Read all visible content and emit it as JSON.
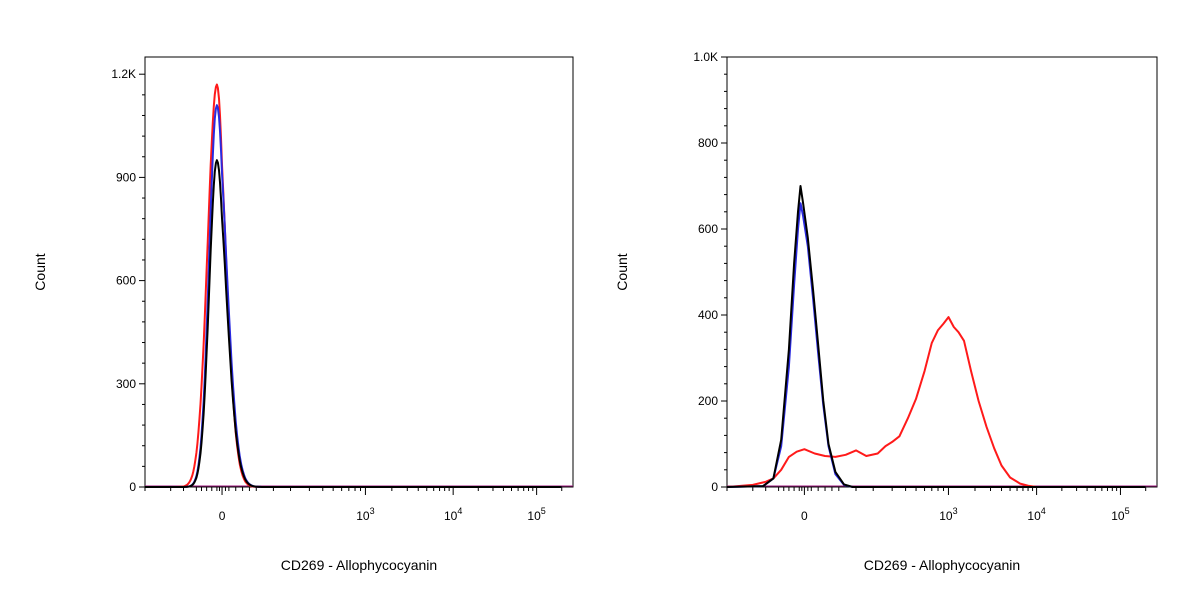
{
  "colors": {
    "red": "#ff1a1a",
    "blue": "#2a2ae0",
    "black": "#000000",
    "purple": "#a01a80"
  },
  "chart_data": [
    {
      "type": "line",
      "subtype": "flow-cytometry-histogram",
      "xlabel": "CD269 - Allophycocyanin",
      "ylabel": "Count",
      "x_scale": "biexponential",
      "xlim": [
        -300,
        200000
      ],
      "ylim": [
        0,
        1250
      ],
      "y_ticks": [
        0,
        300,
        600,
        900,
        1200
      ],
      "y_tick_labels": [
        "0",
        "300",
        "600",
        "900",
        "1.2K"
      ],
      "x_ticks": [
        0,
        1000,
        10000,
        100000
      ],
      "x_tick_labels": [
        {
          "base": "0",
          "exp": ""
        },
        {
          "base": "10",
          "exp": "3"
        },
        {
          "base": "10",
          "exp": "4"
        },
        {
          "base": "10",
          "exp": "5"
        }
      ],
      "grid": false,
      "series": [
        {
          "color": "red",
          "peak_x": -20,
          "peak_count": 1170,
          "width_left": 36,
          "width_right": 30
        },
        {
          "color": "blue",
          "peak_x": -20,
          "peak_count": 1110,
          "width_left": 30,
          "width_right": 32
        },
        {
          "color": "black",
          "peak_x": -20,
          "peak_count": 950,
          "width_left": 30,
          "width_right": 32
        }
      ]
    },
    {
      "type": "line",
      "subtype": "flow-cytometry-histogram",
      "xlabel": "CD269 - Allophycocyanin",
      "ylabel": "Count",
      "x_scale": "biexponential",
      "xlim": [
        -300,
        200000
      ],
      "ylim": [
        0,
        1000
      ],
      "y_ticks": [
        0,
        200,
        400,
        600,
        800,
        1000
      ],
      "y_tick_labels": [
        "0",
        "200",
        "400",
        "600",
        "800",
        "1.0K"
      ],
      "x_ticks": [
        0,
        1000,
        10000,
        100000
      ],
      "x_tick_labels": [
        {
          "base": "0",
          "exp": ""
        },
        {
          "base": "10",
          "exp": "3"
        },
        {
          "base": "10",
          "exp": "4"
        },
        {
          "base": "10",
          "exp": "5"
        }
      ],
      "grid": false,
      "series": [
        {
          "color": "red",
          "points": [
            [
              -300,
              0
            ],
            [
              -200,
              5
            ],
            [
              -150,
              12
            ],
            [
              -120,
              20
            ],
            [
              -90,
              40
            ],
            [
              -60,
              70
            ],
            [
              -30,
              82
            ],
            [
              0,
              88
            ],
            [
              30,
              78
            ],
            [
              60,
              72
            ],
            [
              90,
              70
            ],
            [
              120,
              75
            ],
            [
              150,
              85
            ],
            [
              180,
              72
            ],
            [
              220,
              78
            ],
            [
              260,
              95
            ],
            [
              300,
              105
            ],
            [
              350,
              118
            ],
            [
              420,
              160
            ],
            [
              500,
              205
            ],
            [
              600,
              270
            ],
            [
              700,
              335
            ],
            [
              800,
              365
            ],
            [
              900,
              380
            ],
            [
              1000,
              395
            ],
            [
              1150,
              372
            ],
            [
              1300,
              360
            ],
            [
              1500,
              340
            ],
            [
              1800,
              270
            ],
            [
              2200,
              200
            ],
            [
              2700,
              140
            ],
            [
              3300,
              90
            ],
            [
              4000,
              50
            ],
            [
              5000,
              22
            ],
            [
              6500,
              8
            ],
            [
              8000,
              3
            ],
            [
              10000,
              0
            ],
            [
              200000,
              0
            ]
          ]
        },
        {
          "color": "blue",
          "points": [
            [
              -300,
              0
            ],
            [
              -160,
              2
            ],
            [
              -120,
              20
            ],
            [
              -90,
              95
            ],
            [
              -60,
              280
            ],
            [
              -40,
              470
            ],
            [
              -25,
              600
            ],
            [
              -15,
              660
            ],
            [
              -5,
              630
            ],
            [
              10,
              560
            ],
            [
              25,
              440
            ],
            [
              40,
              310
            ],
            [
              55,
              190
            ],
            [
              70,
              95
            ],
            [
              90,
              30
            ],
            [
              115,
              5
            ],
            [
              140,
              0
            ],
            [
              200000,
              0
            ]
          ]
        },
        {
          "color": "black",
          "points": [
            [
              -300,
              0
            ],
            [
              -160,
              2
            ],
            [
              -120,
              20
            ],
            [
              -90,
              110
            ],
            [
              -60,
              320
            ],
            [
              -40,
              520
            ],
            [
              -25,
              640
            ],
            [
              -15,
              700
            ],
            [
              -5,
              660
            ],
            [
              10,
              580
            ],
            [
              25,
              460
            ],
            [
              40,
              330
            ],
            [
              55,
              200
            ],
            [
              70,
              100
            ],
            [
              90,
              35
            ],
            [
              115,
              6
            ],
            [
              140,
              0
            ],
            [
              200000,
              0
            ]
          ]
        }
      ]
    }
  ]
}
